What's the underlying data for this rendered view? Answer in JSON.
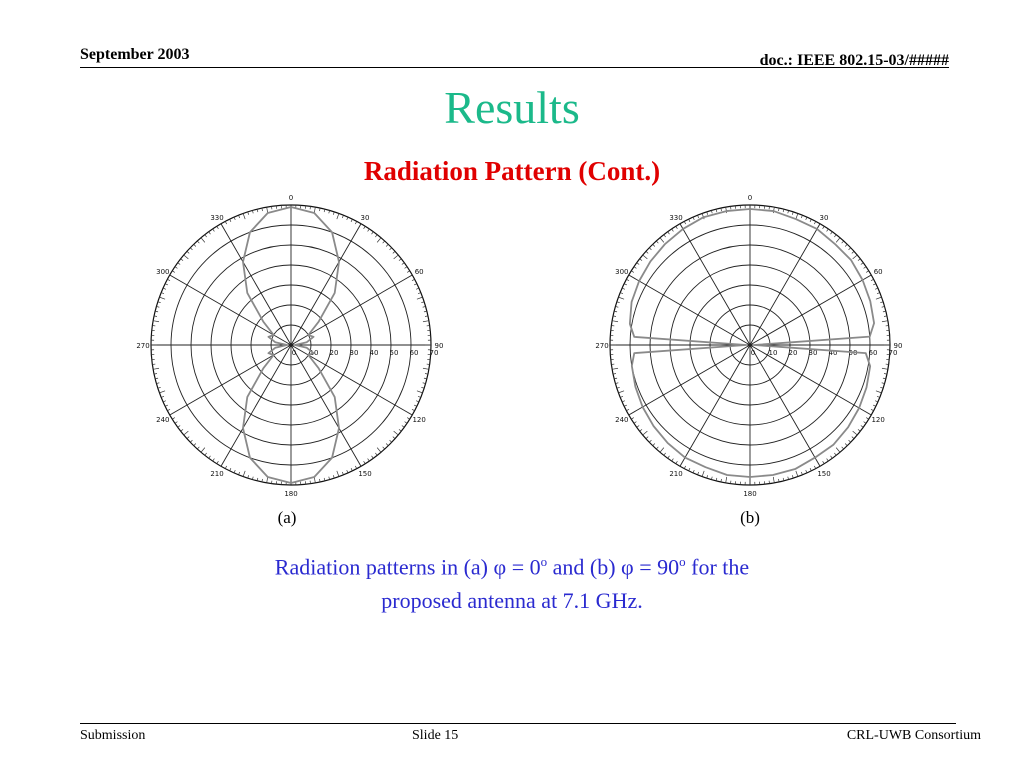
{
  "header": {
    "date": "September 2003",
    "doc_id": "doc.: IEEE 802.15-03/#####"
  },
  "slide": {
    "title": "Results",
    "subtitle": "Radiation Pattern (Cont.)",
    "title_color": "#1bb98a",
    "subtitle_color": "#e00000",
    "caption_color": "#2a2ad0"
  },
  "caption": {
    "line1_prefix": "Radiation patterns in (a) φ = 0",
    "sup1": "o",
    "line1_mid": " and (b) φ = 90",
    "sup2": "o",
    "line1_suffix": " for the",
    "line2": "proposed antenna at 7.1 GHz."
  },
  "footer": {
    "left": "Submission",
    "center": "Slide 15",
    "right": "CRL-UWB Consortium"
  },
  "chart_data": [
    {
      "type": "polar",
      "label": "(a)",
      "angle_ticks": [
        "0",
        "30",
        "60",
        "90",
        "120",
        "150",
        "180",
        "210",
        "240",
        "270",
        "300",
        "330"
      ],
      "radial_ticks": [
        "0",
        "10",
        "20",
        "30",
        "40",
        "50",
        "60",
        "70"
      ],
      "rlim": [
        0,
        70
      ],
      "pattern": "figure-eight lobes along 0°–180° axis with minor side lobes",
      "series": [
        {
          "angles": [
            0,
            10,
            20,
            30,
            40,
            50,
            60,
            70,
            80,
            90,
            100,
            110,
            120,
            130,
            140,
            150,
            160,
            170,
            180,
            190,
            200,
            210,
            220,
            230,
            240,
            250,
            260,
            270,
            280,
            290,
            300,
            310,
            320,
            330,
            340,
            350
          ],
          "values": [
            69,
            67,
            60,
            48,
            34,
            18,
            10,
            12,
            8,
            2,
            8,
            12,
            10,
            18,
            34,
            48,
            60,
            67,
            69,
            67,
            60,
            48,
            34,
            18,
            10,
            12,
            8,
            2,
            8,
            12,
            10,
            18,
            34,
            48,
            60,
            67
          ]
        }
      ]
    },
    {
      "type": "polar",
      "label": "(b)",
      "angle_ticks": [
        "0",
        "30",
        "60",
        "90",
        "120",
        "150",
        "180",
        "210",
        "240",
        "270",
        "300",
        "330"
      ],
      "radial_ticks": [
        "0",
        "10",
        "20",
        "30",
        "40",
        "50",
        "60",
        "70"
      ],
      "rlim": [
        0,
        70
      ],
      "pattern": "near-omnidirectional with sharp nulls at 90° and 270°",
      "series": [
        {
          "angles": [
            0,
            10,
            20,
            30,
            40,
            50,
            60,
            70,
            80,
            86,
            90,
            94,
            100,
            110,
            120,
            130,
            140,
            150,
            160,
            170,
            180,
            190,
            200,
            210,
            220,
            230,
            240,
            250,
            260,
            266,
            270,
            274,
            280,
            290,
            300,
            310,
            320,
            330,
            340,
            350
          ],
          "values": [
            68,
            68,
            67,
            67,
            66,
            66,
            65,
            64,
            63,
            60,
            2,
            58,
            61,
            62,
            63,
            64,
            65,
            65,
            66,
            66,
            66,
            66,
            65,
            65,
            64,
            63,
            62,
            61,
            60,
            58,
            2,
            58,
            61,
            63,
            64,
            65,
            66,
            67,
            68,
            68
          ]
        }
      ]
    }
  ]
}
